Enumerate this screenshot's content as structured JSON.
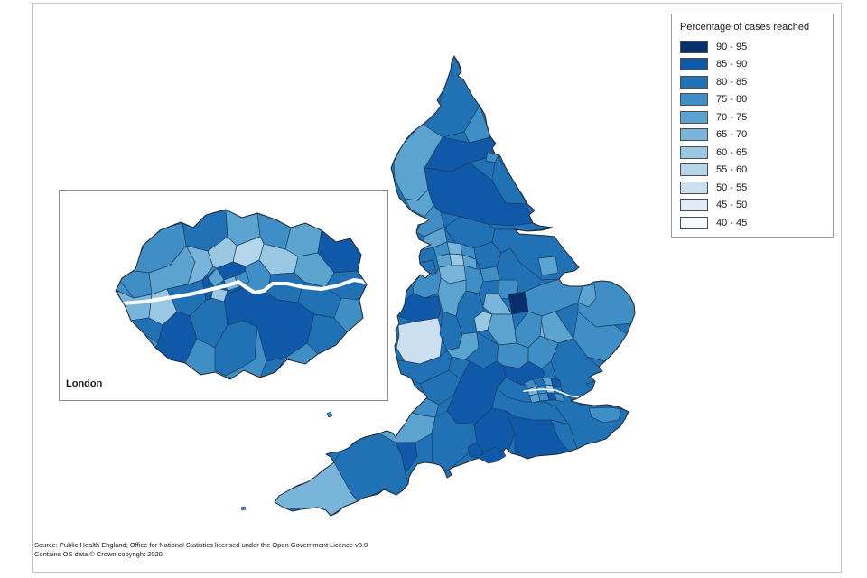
{
  "legend": {
    "title": "Percentage of cases reached",
    "entries": [
      {
        "label": "90 - 95",
        "color": "#08306b"
      },
      {
        "label": "85 - 90",
        "color": "#1059a8"
      },
      {
        "label": "80 - 85",
        "color": "#2171b5"
      },
      {
        "label": "75 - 80",
        "color": "#3f8ec5"
      },
      {
        "label": "70 - 75",
        "color": "#5ba4d0"
      },
      {
        "label": "65 - 70",
        "color": "#79b5da"
      },
      {
        "label": "60 - 65",
        "color": "#9ac8e2"
      },
      {
        "label": "55 - 60",
        "color": "#b4d5ea"
      },
      {
        "label": "50 - 55",
        "color": "#cbdff1"
      },
      {
        "label": "45 - 50",
        "color": "#e0ebf7"
      },
      {
        "label": "40 - 45",
        "color": "#f6faff"
      }
    ]
  },
  "inset": {
    "label": "London"
  },
  "footer": {
    "line1": "Source: Public Health England; Office for National Statistics licensed under the Open Government Licence v3.0",
    "line2": "Contains OS data © Crown copyright 2020."
  },
  "colors": {
    "district_border": "#1b3c5e",
    "coastline": "#23282d",
    "frame_border": "#c6c6c6",
    "legend_border": "#9a9a9a",
    "inset_border": "#8c8c8c",
    "thames": "#ffffff"
  }
}
